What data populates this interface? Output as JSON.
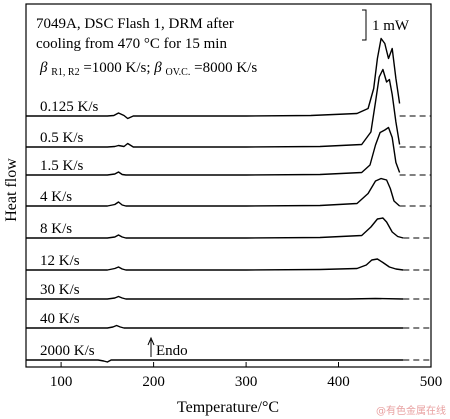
{
  "chart_data": {
    "type": "line",
    "title_lines": [
      "7049A, DSC Flash 1, DRM after",
      "cooling from 470 °C for 15 min"
    ],
    "rates_label": {
      "b1_sym": "β",
      "b1_sub": "R1, R2",
      "b1_val": "=1000 K/s; ",
      "b2_sym": "β",
      "b2_sub": "OV.C.",
      "b2_val": "=8000 K/s"
    },
    "scale_bar_label": "1 mW",
    "endo_label": "Endo",
    "xlabel": "Temperature/°C",
    "ylabel": "Heat flow",
    "xlim": [
      62,
      500
    ],
    "xticks": [
      100,
      200,
      300,
      400,
      500
    ],
    "dashed_baseline_from": 470,
    "series": [
      {
        "name": "0.125 K/s",
        "x": [
          62,
          150,
          157,
          162,
          168,
          172,
          178,
          300,
          370,
          420,
          432,
          438,
          442,
          446,
          450,
          454,
          458,
          462,
          466
        ],
        "y": [
          0,
          0,
          0.01,
          0.06,
          0.01,
          -0.05,
          0,
          0,
          0.01,
          0.05,
          0.15,
          0.55,
          1.15,
          1.55,
          1.45,
          1.15,
          1.35,
          0.75,
          0.25
        ]
      },
      {
        "name": "0.5 K/s",
        "x": [
          62,
          150,
          158,
          162,
          168,
          172,
          178,
          300,
          380,
          425,
          435,
          440,
          444,
          448,
          452,
          455,
          458,
          462,
          466
        ],
        "y": [
          0,
          0,
          0.01,
          0.03,
          0.01,
          0.07,
          0,
          0,
          0.01,
          0.05,
          0.3,
          0.9,
          1.4,
          1.55,
          1.3,
          1.35,
          1.05,
          0.5,
          0.05
        ]
      },
      {
        "name": "1.5 K/s",
        "x": [
          62,
          150,
          158,
          162,
          166,
          170,
          300,
          380,
          425,
          434,
          440,
          445,
          450,
          454,
          458,
          462,
          466
        ],
        "y": [
          0,
          0,
          0.02,
          0.06,
          0.01,
          0,
          0,
          0.01,
          0.05,
          0.2,
          0.6,
          0.85,
          0.9,
          0.95,
          0.75,
          0.25,
          0.05
        ]
      },
      {
        "name": "4 K/s",
        "x": [
          62,
          150,
          158,
          162,
          166,
          170,
          300,
          380,
          420,
          432,
          440,
          446,
          452,
          456,
          460,
          466
        ],
        "y": [
          0,
          0,
          0.03,
          0.08,
          0.02,
          0,
          0,
          0.01,
          0.05,
          0.25,
          0.5,
          0.55,
          0.52,
          0.35,
          0.1,
          0
        ]
      },
      {
        "name": "8 K/s",
        "x": [
          62,
          150,
          158,
          162,
          166,
          170,
          300,
          380,
          425,
          435,
          442,
          448,
          452,
          458,
          464,
          470
        ],
        "y": [
          0,
          0,
          0.02,
          0.06,
          0.02,
          0,
          0,
          0.01,
          0.05,
          0.22,
          0.38,
          0.4,
          0.32,
          0.12,
          0.03,
          0
        ]
      },
      {
        "name": "12 K/s",
        "x": [
          62,
          150,
          158,
          162,
          166,
          170,
          300,
          380,
          420,
          430,
          436,
          442,
          448,
          455,
          462,
          470
        ],
        "y": [
          0,
          0,
          0.03,
          0.06,
          0.02,
          0,
          0,
          0.01,
          0.03,
          0.1,
          0.2,
          0.22,
          0.15,
          0.06,
          0.02,
          0
        ]
      },
      {
        "name": "30 K/s",
        "x": [
          62,
          150,
          158,
          162,
          166,
          170,
          300,
          410,
          440,
          470
        ],
        "y": [
          0,
          0,
          0.02,
          0.05,
          0.02,
          0,
          0,
          0,
          0.01,
          0
        ]
      },
      {
        "name": "40 K/s",
        "x": [
          62,
          150,
          156,
          160,
          164,
          168,
          300,
          470
        ],
        "y": [
          0,
          0,
          0.02,
          0.05,
          0.02,
          0,
          0,
          0
        ]
      },
      {
        "name": "2000 K/s",
        "x": [
          62,
          140,
          146,
          150,
          154,
          300,
          470
        ],
        "y": [
          0,
          0,
          -0.02,
          -0.04,
          0,
          0,
          0
        ]
      }
    ],
    "grid": false,
    "legend": "inline labels"
  }
}
